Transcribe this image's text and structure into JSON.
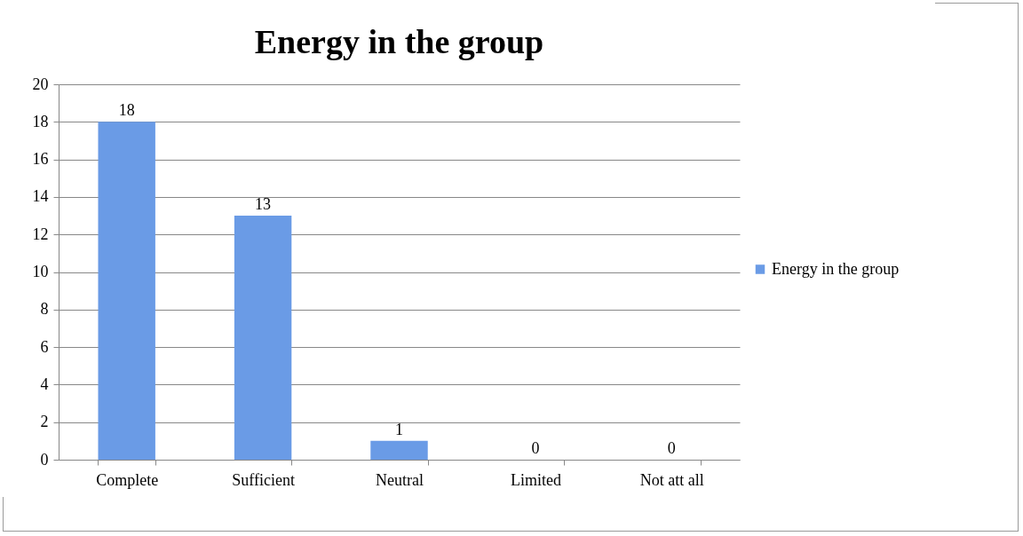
{
  "chart_data": {
    "type": "bar",
    "title": "Energy in the group",
    "categories": [
      "Complete",
      "Sufficient",
      "Neutral",
      "Limited",
      "Not att all"
    ],
    "series": [
      {
        "name": "Energy in the group",
        "color": "#6a9be6",
        "values": [
          18,
          13,
          1,
          0,
          0
        ]
      }
    ],
    "ylim": [
      0,
      20
    ],
    "yticks": [
      0,
      2,
      4,
      6,
      8,
      10,
      12,
      14,
      16,
      18,
      20
    ],
    "grid": "y",
    "legend": "right",
    "data_labels": true
  }
}
